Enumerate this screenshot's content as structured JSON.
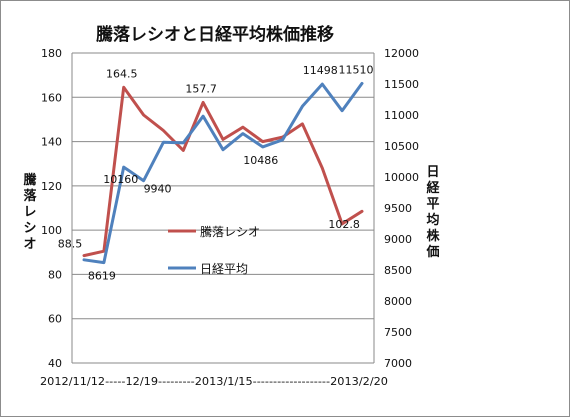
{
  "chart_data": {
    "type": "line",
    "title": "騰落レシオと日経平均株価推移",
    "ylabel_left": "騰落レシオ",
    "ylabel_right": "日経平均株価",
    "ylim_left": [
      40,
      180
    ],
    "yticks_left": [
      40,
      60,
      80,
      100,
      120,
      140,
      160,
      180
    ],
    "ylim_right": [
      7000,
      12000
    ],
    "yticks_right": [
      7000,
      7500,
      8000,
      8500,
      9000,
      9500,
      10000,
      10500,
      11000,
      11500,
      12000
    ],
    "x_axis_text": "2012/11/12-----12/19---------2013/1/15-------------------2013/2/20",
    "grid": "horizontal",
    "legend_placement": "center",
    "series": [
      {
        "name": "騰落レシオ",
        "axis": "left",
        "color": "#c0504d",
        "values": [
          88.5,
          90.5,
          164.5,
          152,
          145,
          136,
          157.7,
          141,
          146.5,
          140,
          142,
          148,
          128,
          102.8,
          108.5
        ]
      },
      {
        "name": "日経平均",
        "axis": "right",
        "color": "#4f81bd",
        "values": [
          8665,
          8619,
          10160,
          9940,
          10560,
          10550,
          10980,
          10440,
          10700,
          10486,
          10600,
          11140,
          11498,
          11070,
          11510
        ]
      }
    ],
    "data_labels": [
      {
        "series": 0,
        "index": 0,
        "text": "88.5"
      },
      {
        "series": 0,
        "index": 2,
        "text": "164.5"
      },
      {
        "series": 0,
        "index": 6,
        "text": "157.7"
      },
      {
        "series": 0,
        "index": 13,
        "text": "102.8"
      },
      {
        "series": 1,
        "index": 1,
        "text": "8619"
      },
      {
        "series": 1,
        "index": 2,
        "text": "10160"
      },
      {
        "series": 1,
        "index": 3,
        "text": "9940"
      },
      {
        "series": 1,
        "index": 9,
        "text": "10486"
      },
      {
        "series": 1,
        "index": 12,
        "text": "11498"
      },
      {
        "series": 1,
        "index": 14,
        "text": "11510"
      }
    ]
  }
}
